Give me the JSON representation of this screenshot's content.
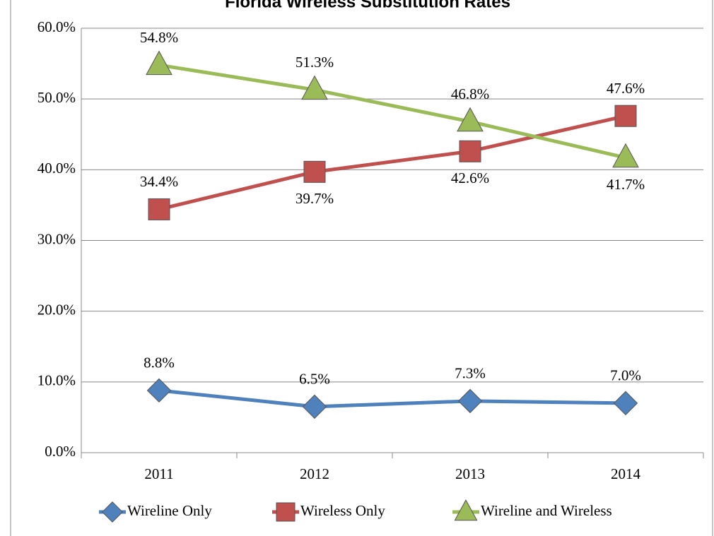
{
  "chart_data": {
    "type": "line",
    "title": "Florida Wireless Substitution Rates",
    "categories": [
      "2011",
      "2012",
      "2013",
      "2014"
    ],
    "series": [
      {
        "name": "Wireline Only",
        "color": "#4f81bd",
        "marker": "diamond",
        "values": [
          8.8,
          6.5,
          7.3,
          7.0
        ],
        "value_labels": [
          "8.8%",
          "6.5%",
          "7.3%",
          "7.0%"
        ]
      },
      {
        "name": "Wireless Only",
        "color": "#c0504d",
        "marker": "square",
        "values": [
          34.4,
          39.7,
          42.6,
          47.6
        ],
        "value_labels": [
          "34.4%",
          "39.7%",
          "42.6%",
          "47.6%"
        ]
      },
      {
        "name": "Wireline and Wireless",
        "color": "#9bbb59",
        "marker": "triangle",
        "values": [
          54.8,
          51.3,
          46.8,
          41.7
        ],
        "value_labels": [
          "54.8%",
          "51.3%",
          "46.8%",
          "41.7%"
        ]
      }
    ],
    "ylim": [
      0,
      60
    ],
    "yticks": [
      {
        "value": 0,
        "label": "0.0%"
      },
      {
        "value": 10,
        "label": "10.0%"
      },
      {
        "value": 20,
        "label": "20.0%"
      },
      {
        "value": 30,
        "label": "30.0%"
      },
      {
        "value": 40,
        "label": "40.0%"
      },
      {
        "value": 50,
        "label": "50.0%"
      },
      {
        "value": 60,
        "label": "60.0%"
      }
    ],
    "grid": true,
    "legend": "bottom"
  }
}
